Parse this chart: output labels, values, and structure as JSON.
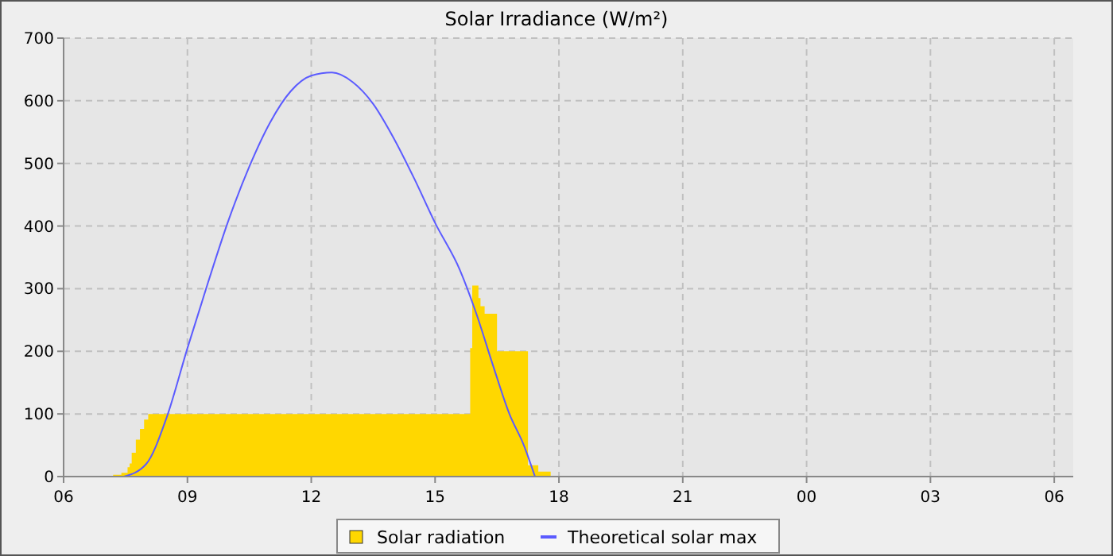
{
  "chart_data": {
    "type": "step",
    "title": "Solar Irradiance (W/m²)",
    "xlim": [
      6,
      30.46
    ],
    "xticks": [
      {
        "value": 6,
        "label": "06"
      },
      {
        "value": 9,
        "label": "09"
      },
      {
        "value": 12,
        "label": "12"
      },
      {
        "value": 15,
        "label": "15"
      },
      {
        "value": 18,
        "label": "18"
      },
      {
        "value": 21,
        "label": "21"
      },
      {
        "value": 24,
        "label": "00"
      },
      {
        "value": 27,
        "label": "03"
      },
      {
        "value": 30,
        "label": "06"
      }
    ],
    "ylim": [
      0,
      700
    ],
    "yticks": [
      0,
      100,
      200,
      300,
      400,
      500,
      600,
      700
    ],
    "grid": true,
    "legend": "bottom",
    "series": [
      {
        "name": "Solar radiation",
        "type": "area",
        "color": "#ffd700",
        "x": [
          7.2,
          7.4,
          7.55,
          7.6,
          7.65,
          7.75,
          7.85,
          7.95,
          8.05,
          15.85,
          15.9,
          16.05,
          16.1,
          16.2,
          16.5,
          17.25,
          17.5,
          17.8
        ],
        "values": [
          3,
          6,
          15,
          21,
          38,
          59,
          76,
          91,
          100,
          205,
          305,
          285,
          272,
          260,
          200,
          18,
          8,
          0
        ]
      },
      {
        "name": "Theoretical solar max",
        "type": "line",
        "color": "#5b5bff",
        "x": [
          7.46,
          8,
          8.5,
          9,
          9.5,
          10,
          10.5,
          11,
          11.5,
          12,
          12.5,
          13,
          13.5,
          14,
          14.5,
          15,
          15.6,
          16,
          16.4,
          16.8,
          17.15,
          17.42
        ],
        "values": [
          0,
          20,
          95,
          205,
          310,
          410,
          495,
          565,
          615,
          640,
          645,
          630,
          595,
          540,
          475,
          405,
          330,
          260,
          178,
          100,
          50,
          0
        ]
      }
    ]
  }
}
